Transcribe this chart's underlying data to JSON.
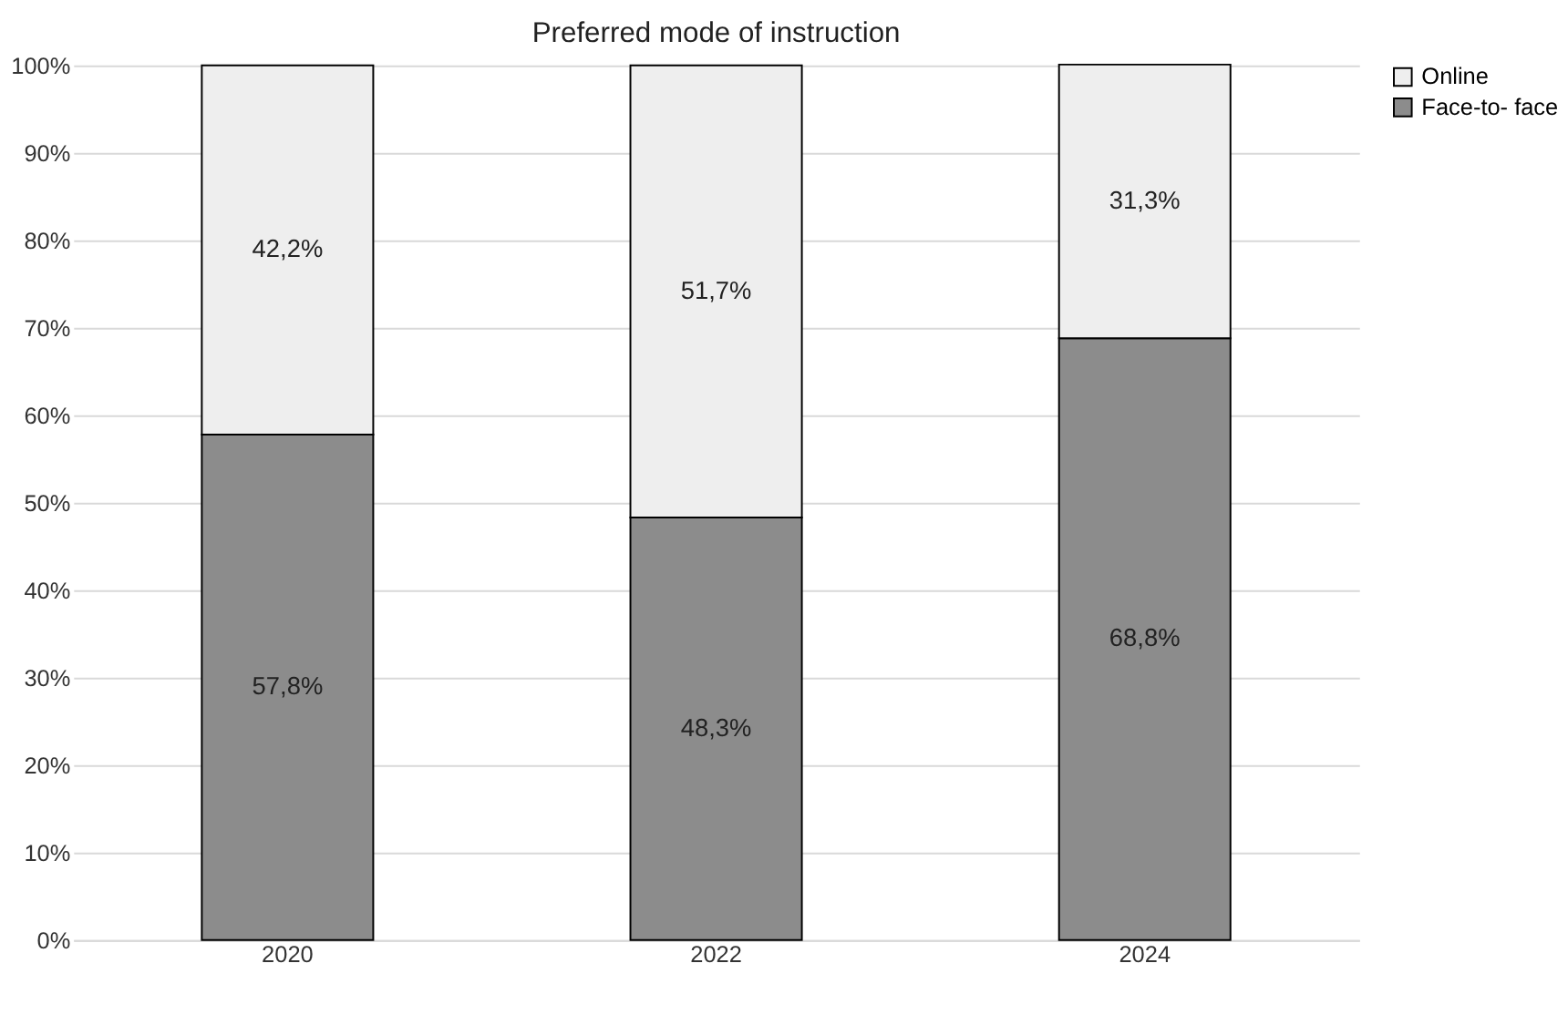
{
  "chart_data": {
    "type": "bar",
    "title": "Preferred mode of instruction",
    "stacked": true,
    "categories": [
      "2020",
      "2022",
      "2024"
    ],
    "series": [
      {
        "name": "Face-to- face",
        "color": "#8c8c8c",
        "values": [
          57.8,
          48.3,
          68.8
        ],
        "value_labels": [
          "57,8%",
          "48,3%",
          "68,8%"
        ]
      },
      {
        "name": "Online",
        "color": "#eeeeee",
        "values": [
          42.2,
          51.7,
          31.3
        ],
        "value_labels": [
          "42,2%",
          "51,7%",
          "31,3%"
        ]
      }
    ],
    "ylim": [
      0,
      100
    ],
    "yticks": [
      {
        "value": 0,
        "label": "0%"
      },
      {
        "value": 10,
        "label": "10%"
      },
      {
        "value": 20,
        "label": "20%"
      },
      {
        "value": 30,
        "label": "30%"
      },
      {
        "value": 40,
        "label": "40%"
      },
      {
        "value": 50,
        "label": "50%"
      },
      {
        "value": 60,
        "label": "60%"
      },
      {
        "value": 70,
        "label": "70%"
      },
      {
        "value": 80,
        "label": "80%"
      },
      {
        "value": 90,
        "label": "90%"
      },
      {
        "value": 100,
        "label": "100%"
      }
    ],
    "grid": "y",
    "legend": "right"
  }
}
